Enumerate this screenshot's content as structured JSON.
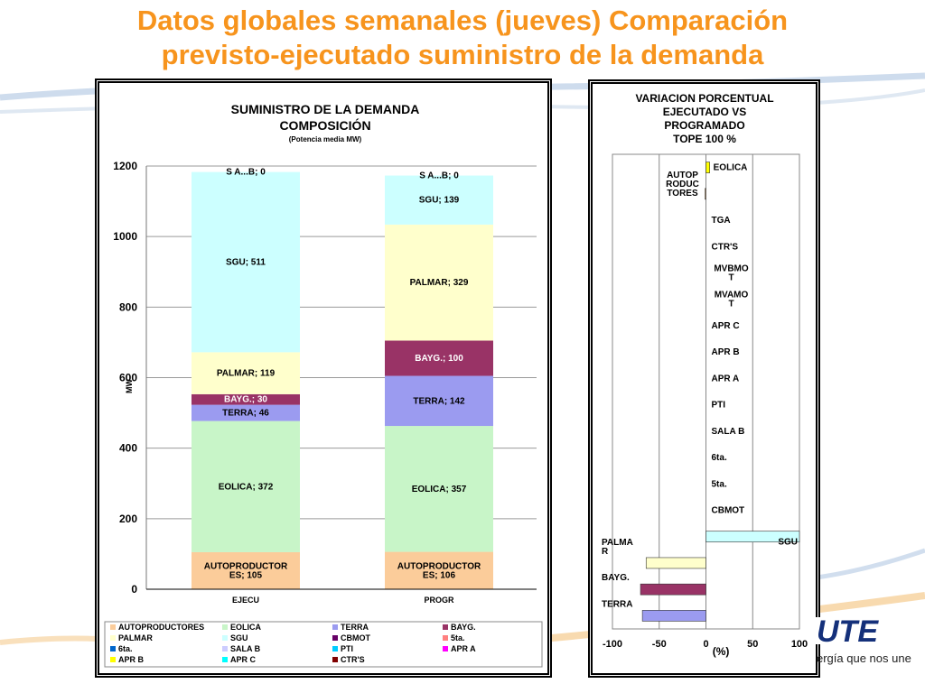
{
  "slide": {
    "title_line1": "Datos globales semanales  (jueves) Comparación",
    "title_line2": "previsto-ejecutado suministro de la demanda",
    "tagline": "ergía que nos une",
    "logo_text": "UTE"
  },
  "colors": {
    "title": "#f7941d",
    "AUTOPRODUCTORES": "#fbcc9a",
    "EOLICA": "#c8f5c8",
    "TERRA": "#9b9bf0",
    "BAYG.": "#993366",
    "PALMAR": "#ffffcc",
    "SGU": "#ccffff",
    "CBMOT": "#660066",
    "5ta.": "#ff8080",
    "6ta.": "#0066cc",
    "SALA B": "#ccccff",
    "PTI": "#00ccff",
    "APR A": "#ff00ff",
    "APR B": "#ffff00",
    "APR C": "#00ffff",
    "CTR'S": "#800000"
  },
  "chart_data": [
    {
      "type": "bar",
      "stacked": true,
      "title": "SUMINISTRO DE LA DEMANDA",
      "subtitle": "COMPOSICIÓN",
      "note": "(Potencia media MW)",
      "ylabel": "MW",
      "xlabel": "",
      "ylim": [
        0,
        1200
      ],
      "yticks": [
        0,
        200,
        400,
        600,
        800,
        1000,
        1200
      ],
      "categories": [
        "EJECU",
        "PROGR"
      ],
      "series": [
        {
          "name": "AUTOPRODUCTORES",
          "values": [
            105,
            106
          ],
          "labels": [
            "AUTOPRODUCTOR\nES; 105",
            "AUTOPRODUCTOR\nES; 106"
          ]
        },
        {
          "name": "EOLICA",
          "values": [
            372,
            357
          ],
          "labels": [
            "EOLICA; 372",
            "EOLICA; 357"
          ]
        },
        {
          "name": "TERRA",
          "values": [
            46,
            142
          ],
          "labels": [
            "TERRA; 46",
            "TERRA; 142"
          ]
        },
        {
          "name": "BAYG.",
          "values": [
            30,
            100
          ],
          "labels": [
            "BAYG.; 30",
            "BAYG.; 100"
          ]
        },
        {
          "name": "PALMAR",
          "values": [
            119,
            329
          ],
          "labels": [
            "PALMAR; 119",
            "PALMAR; 329"
          ]
        },
        {
          "name": "SGU",
          "values": [
            511,
            139
          ],
          "labels": [
            "SGU; 511",
            "SGU; 139"
          ]
        },
        {
          "name": "CBMOT",
          "values": [
            0,
            0
          ],
          "labels": [
            "",
            ""
          ]
        },
        {
          "name": "5ta.",
          "values": [
            0,
            0
          ],
          "labels": [
            "",
            ""
          ]
        },
        {
          "name": "6ta.",
          "values": [
            0,
            0
          ],
          "labels": [
            "",
            ""
          ]
        },
        {
          "name": "SALA B",
          "values": [
            0,
            0
          ],
          "labels": [
            "",
            ""
          ]
        },
        {
          "name": "PTI",
          "values": [
            0,
            0
          ],
          "labels": [
            "",
            ""
          ]
        },
        {
          "name": "APR A",
          "values": [
            0,
            0
          ],
          "labels": [
            "",
            ""
          ]
        },
        {
          "name": "APR B",
          "values": [
            0,
            0
          ],
          "labels": [
            "",
            ""
          ]
        },
        {
          "name": "APR C",
          "values": [
            0,
            0
          ],
          "labels": [
            "",
            ""
          ]
        },
        {
          "name": "CTR'S",
          "values": [
            0,
            0
          ],
          "labels": [
            "",
            ""
          ]
        }
      ],
      "top_labels": [
        "S A...B; 0",
        "S A...B; 0"
      ],
      "legend": [
        "AUTOPRODUCTORES",
        "EOLICA",
        "TERRA",
        "BAYG.",
        "PALMAR",
        "SGU",
        "CBMOT",
        "5ta.",
        "6ta.",
        "SALA B",
        "PTI",
        "APR A",
        "APR B",
        "APR C",
        "CTR'S"
      ],
      "legend_position": "bottom"
    },
    {
      "type": "bar",
      "orientation": "horizontal",
      "title": "VARIACION  PORCENTUAL\nEJECUTADO  VS\nPROGRAMADO\nTOPE 100 %",
      "xlabel": "(%)",
      "xlim": [
        -100,
        100
      ],
      "xticks": [
        -100,
        -50,
        0,
        50,
        100
      ],
      "categories": [
        "EOLICA",
        "AUTOP\nRODUC\nTORES",
        "TGA",
        "CTR'S",
        "MVBMO\nT",
        "MVAMO\nT",
        "APR C",
        "APR B",
        "APR A",
        "PTI",
        "SALA B",
        "6ta.",
        "5ta.",
        "CBMOT",
        "SGU",
        "PALMA\nR",
        "BAYG.",
        "TERRA"
      ],
      "values": [
        4,
        -1,
        0,
        0,
        0,
        0,
        0,
        0,
        0,
        0,
        0,
        0,
        0,
        0,
        100,
        -64,
        -70,
        -68
      ],
      "series_colors": [
        "#ffff00",
        "#fbcc9a",
        "#ffffff",
        "#800000",
        "#ffffff",
        "#ffffff",
        "#00ffff",
        "#ffff00",
        "#ff00ff",
        "#00ccff",
        "#ccccff",
        "#0066cc",
        "#ff8080",
        "#660066",
        "#ccffff",
        "#ffffcc",
        "#993366",
        "#9b9bf0"
      ]
    }
  ]
}
